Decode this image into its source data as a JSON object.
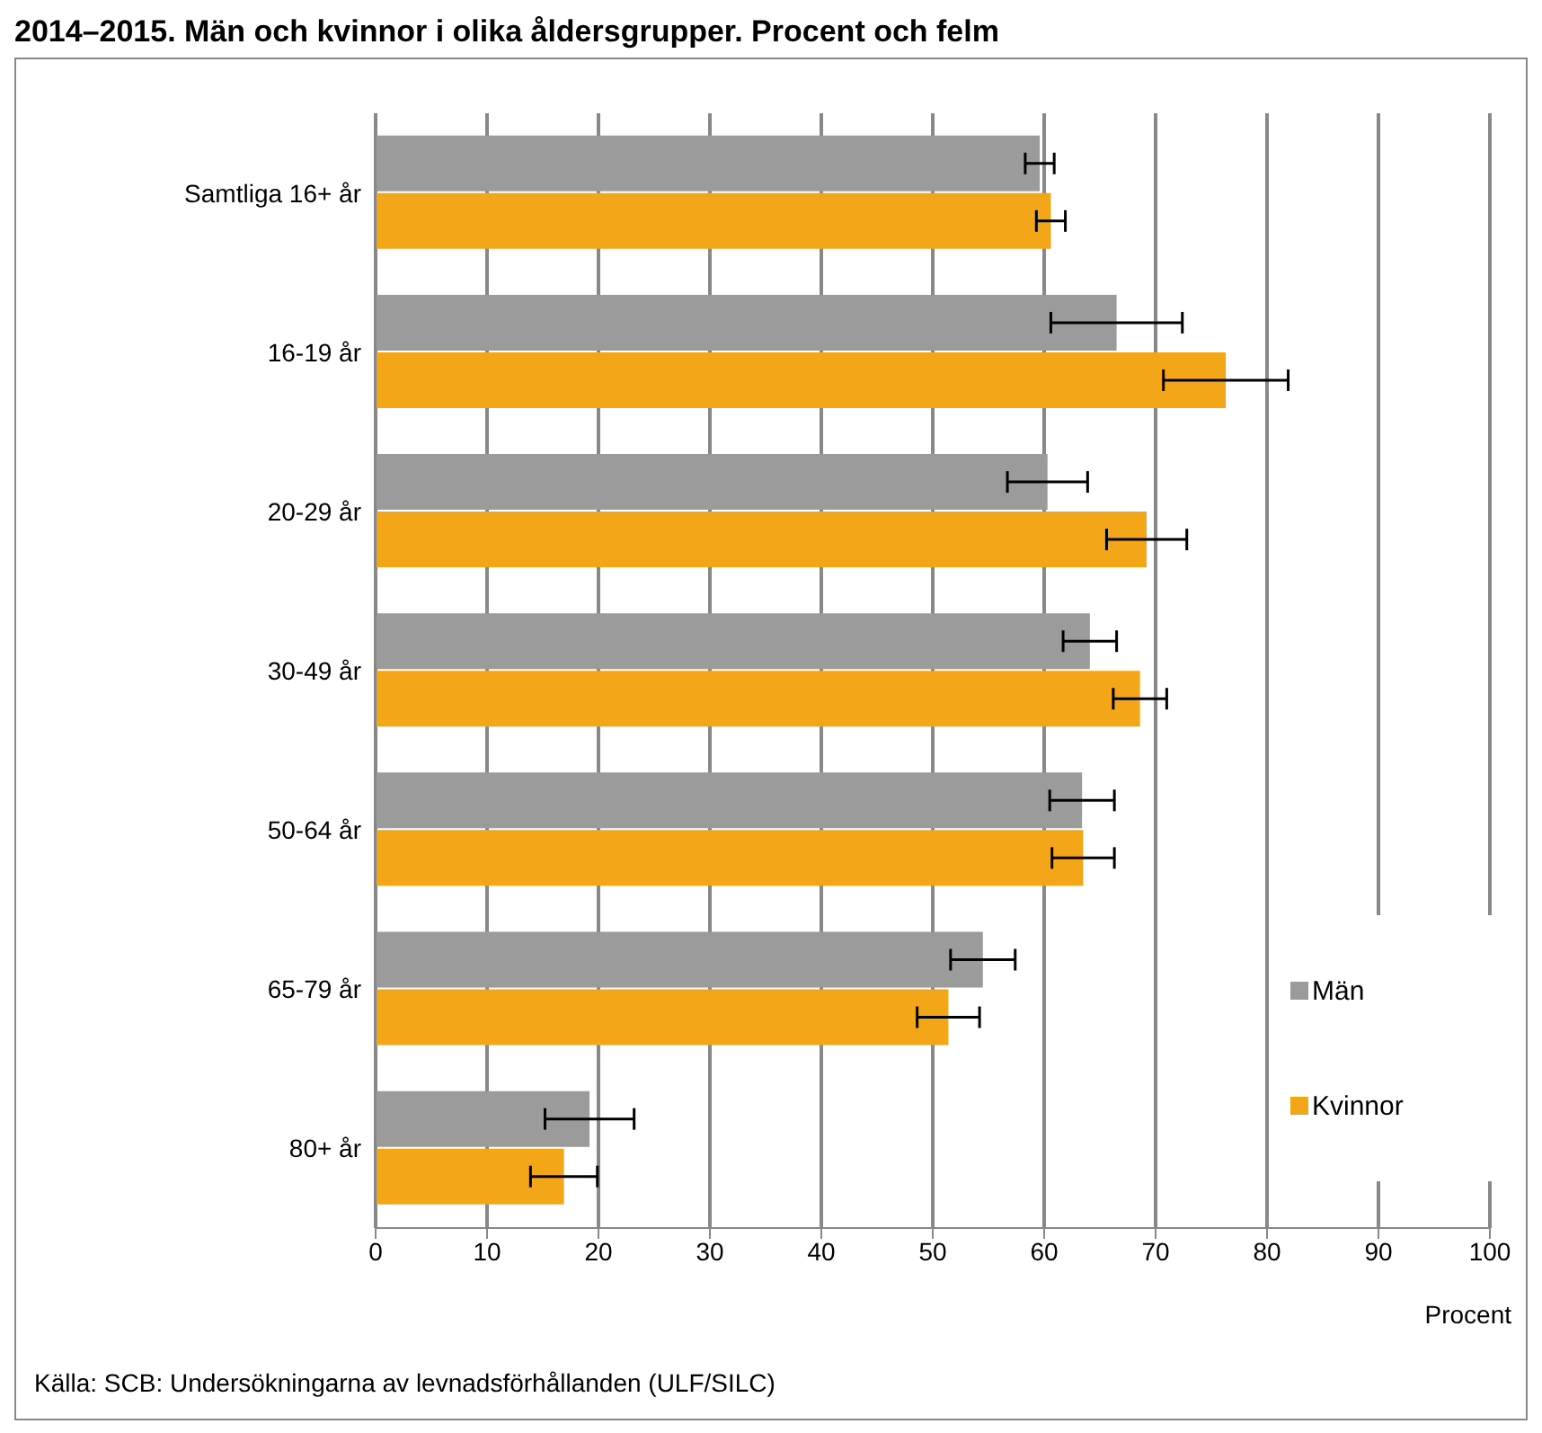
{
  "chart_data": {
    "type": "bar",
    "orientation": "horizontal",
    "title": "2014–2015. Män och kvinnor i olika åldersgrupper. Procent och felm",
    "xlabel": "Procent",
    "annotations": [
      "Källa: SCB: Undersökningarna av levnadsförhållanden (ULF/SILC)"
    ],
    "categories": [
      "Samtliga 16+ år",
      "16-19 år",
      "20-29 år",
      "30-49 år",
      "50-64 år",
      "65-79 år",
      "80+ år"
    ],
    "series": [
      {
        "name": "Män",
        "color": "#9b9b9b",
        "values": [
          59.6,
          66.5,
          60.3,
          64.1,
          63.4,
          54.5,
          19.2
        ],
        "errors": [
          1.3,
          5.9,
          3.6,
          2.4,
          2.9,
          2.9,
          4
        ]
      },
      {
        "name": "Kvinnor",
        "color": "#f4a619",
        "values": [
          60.6,
          76.3,
          69.2,
          68.6,
          63.5,
          51.4,
          16.9
        ],
        "errors": [
          1.3,
          5.6,
          3.6,
          2.4,
          2.8,
          2.8,
          3
        ]
      }
    ],
    "xlim": [
      0,
      100
    ],
    "xticks": [
      0,
      10,
      20,
      30,
      40,
      50,
      60,
      70,
      80,
      90,
      100
    ],
    "grid": "x",
    "legend": "bottom right"
  }
}
